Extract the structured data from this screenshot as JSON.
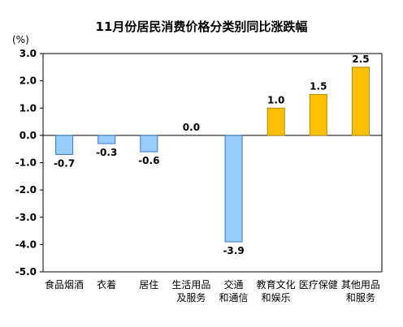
{
  "chart_data": {
    "type": "bar",
    "title": "11月份居民消费价格分类别同比涨跌幅",
    "unit": "(%)",
    "categories": [
      [
        "食品烟酒"
      ],
      [
        "衣着"
      ],
      [
        "居住"
      ],
      [
        "生活用品",
        "及服务"
      ],
      [
        "交通",
        "和通信"
      ],
      [
        "教育文化",
        "和娱乐"
      ],
      [
        "医疗保健"
      ],
      [
        "其他用品",
        "和服务"
      ]
    ],
    "values": [
      -0.7,
      -0.3,
      -0.6,
      0.0,
      -3.9,
      1.0,
      1.5,
      2.5
    ],
    "value_labels": [
      "-0.7",
      "-0.3",
      "-0.6",
      "0.0",
      "-3.9",
      "1.0",
      "1.5",
      "2.5"
    ],
    "yticks": [
      "3.0",
      "2.0",
      "1.0",
      "0.0",
      "-1.0",
      "-2.0",
      "-3.0",
      "-4.0",
      "-5.0"
    ],
    "ylim": [
      -5,
      3
    ],
    "grid": false,
    "colors": {
      "negative_fill": "#99CCFF",
      "negative_stroke": "#3A7BC8",
      "positive_fill": "#FFC000",
      "positive_stroke": "#B38700",
      "axis": "#000000"
    }
  }
}
